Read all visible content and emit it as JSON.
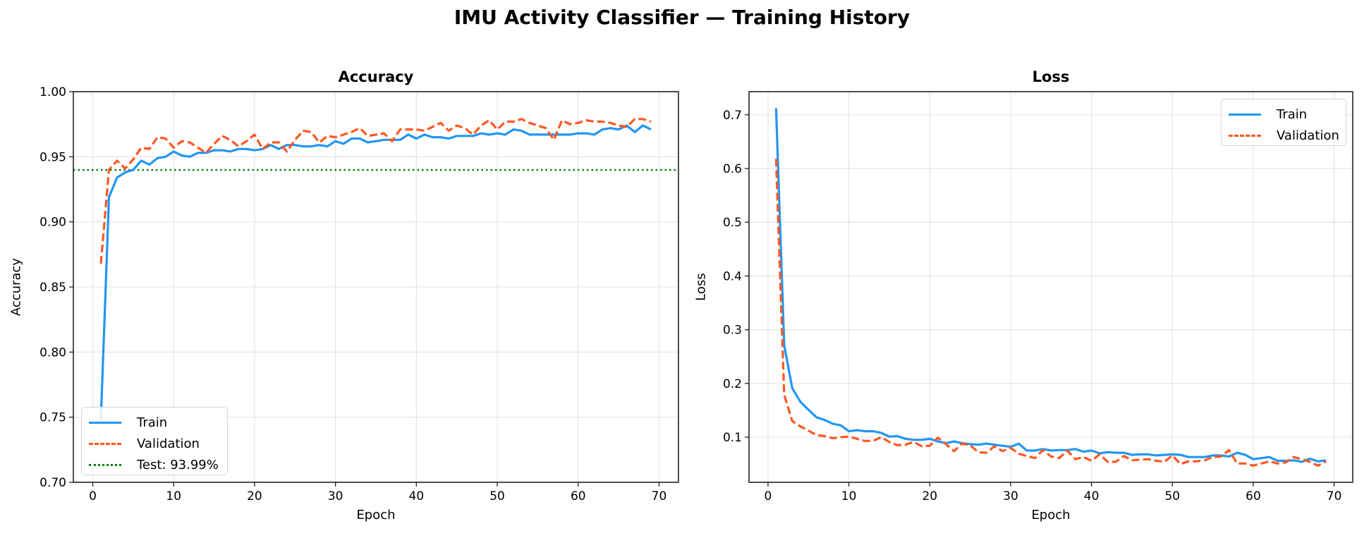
{
  "figure": {
    "suptitle": "IMU Activity Classifier — Training History"
  },
  "colors": {
    "train": "#2196F3",
    "validation": "#FF5722",
    "test": "#008000",
    "grid": "#e6e6e6",
    "spine": "#222222"
  },
  "chart_data": [
    {
      "type": "line",
      "title": "Accuracy",
      "xlabel": "Epoch",
      "ylabel": "Accuracy",
      "xlim": [
        -2.4,
        72.4
      ],
      "ylim": [
        0.7,
        1.0
      ],
      "xticks": [
        0,
        10,
        20,
        30,
        40,
        50,
        60,
        70
      ],
      "yticks": [
        0.7,
        0.75,
        0.8,
        0.85,
        0.9,
        0.95,
        1.0
      ],
      "ytick_labels": [
        "0.70",
        "0.75",
        "0.80",
        "0.85",
        "0.90",
        "0.95",
        "1.00"
      ],
      "grid": true,
      "legend_position": "lower left",
      "x": [
        1,
        2,
        3,
        4,
        5,
        6,
        7,
        8,
        9,
        10,
        11,
        12,
        13,
        14,
        15,
        16,
        17,
        18,
        19,
        20,
        21,
        22,
        23,
        24,
        25,
        26,
        27,
        28,
        29,
        30,
        31,
        32,
        33,
        34,
        35,
        36,
        37,
        38,
        39,
        40,
        41,
        42,
        43,
        44,
        45,
        46,
        47,
        48,
        49,
        50,
        51,
        52,
        53,
        54,
        55,
        56,
        57,
        58,
        59,
        60,
        61,
        62,
        63,
        64,
        65,
        66,
        67,
        68,
        69
      ],
      "series": [
        {
          "name": "Train",
          "style": "solid",
          "values": [
            0.748,
            0.919,
            0.934,
            0.938,
            0.94,
            0.947,
            0.944,
            0.949,
            0.95,
            0.954,
            0.951,
            0.95,
            0.953,
            0.953,
            0.955,
            0.955,
            0.954,
            0.956,
            0.956,
            0.955,
            0.956,
            0.959,
            0.956,
            0.959,
            0.959,
            0.958,
            0.958,
            0.959,
            0.958,
            0.962,
            0.96,
            0.964,
            0.964,
            0.961,
            0.962,
            0.963,
            0.963,
            0.963,
            0.967,
            0.964,
            0.967,
            0.965,
            0.965,
            0.964,
            0.966,
            0.966,
            0.966,
            0.968,
            0.967,
            0.968,
            0.967,
            0.971,
            0.97,
            0.967,
            0.967,
            0.967,
            0.967,
            0.967,
            0.967,
            0.968,
            0.968,
            0.967,
            0.971,
            0.972,
            0.971,
            0.974,
            0.969,
            0.974,
            0.971
          ]
        },
        {
          "name": "Validation",
          "style": "dashed",
          "values": [
            0.868,
            0.94,
            0.947,
            0.941,
            0.948,
            0.957,
            0.956,
            0.965,
            0.964,
            0.957,
            0.962,
            0.961,
            0.957,
            0.953,
            0.96,
            0.966,
            0.963,
            0.958,
            0.962,
            0.967,
            0.956,
            0.961,
            0.961,
            0.954,
            0.963,
            0.97,
            0.969,
            0.961,
            0.966,
            0.965,
            0.967,
            0.969,
            0.972,
            0.966,
            0.967,
            0.968,
            0.962,
            0.971,
            0.971,
            0.971,
            0.97,
            0.973,
            0.976,
            0.97,
            0.974,
            0.972,
            0.967,
            0.974,
            0.978,
            0.971,
            0.977,
            0.977,
            0.979,
            0.976,
            0.974,
            0.972,
            0.963,
            0.978,
            0.975,
            0.976,
            0.978,
            0.977,
            0.977,
            0.976,
            0.974,
            0.973,
            0.979,
            0.979,
            0.977
          ]
        }
      ],
      "hlines": [
        {
          "name": "Test: 93.99%",
          "value": 0.9399,
          "style": "dotted"
        }
      ],
      "legend": [
        "Train",
        "Validation",
        "Test: 93.99%"
      ]
    },
    {
      "type": "line",
      "title": "Loss",
      "xlabel": "Epoch",
      "ylabel": "Loss",
      "xlim": [
        -2.35,
        72.3
      ],
      "ylim": [
        0.016,
        0.743
      ],
      "xticks": [
        0,
        10,
        20,
        30,
        40,
        50,
        60,
        70
      ],
      "yticks": [
        0.1,
        0.2,
        0.3,
        0.4,
        0.5,
        0.6,
        0.7
      ],
      "ytick_labels": [
        "0.1",
        "0.2",
        "0.3",
        "0.4",
        "0.5",
        "0.6",
        "0.7"
      ],
      "grid": true,
      "legend_position": "upper right",
      "x": [
        1,
        2,
        3,
        4,
        5,
        6,
        7,
        8,
        9,
        10,
        11,
        12,
        13,
        14,
        15,
        16,
        17,
        18,
        19,
        20,
        21,
        22,
        23,
        24,
        25,
        26,
        27,
        28,
        29,
        30,
        31,
        32,
        33,
        34,
        35,
        36,
        37,
        38,
        39,
        40,
        41,
        42,
        43,
        44,
        45,
        46,
        47,
        48,
        49,
        50,
        51,
        52,
        53,
        54,
        55,
        56,
        57,
        58,
        59,
        60,
        61,
        62,
        63,
        64,
        65,
        66,
        67,
        68,
        69
      ],
      "series": [
        {
          "name": "Train",
          "style": "solid",
          "values": [
            0.712,
            0.271,
            0.191,
            0.166,
            0.151,
            0.137,
            0.132,
            0.125,
            0.122,
            0.111,
            0.113,
            0.111,
            0.111,
            0.108,
            0.101,
            0.102,
            0.097,
            0.095,
            0.095,
            0.097,
            0.092,
            0.089,
            0.092,
            0.089,
            0.087,
            0.086,
            0.088,
            0.086,
            0.084,
            0.082,
            0.088,
            0.075,
            0.075,
            0.078,
            0.075,
            0.076,
            0.076,
            0.078,
            0.073,
            0.075,
            0.07,
            0.072,
            0.071,
            0.071,
            0.067,
            0.068,
            0.068,
            0.066,
            0.067,
            0.068,
            0.067,
            0.063,
            0.063,
            0.063,
            0.066,
            0.066,
            0.064,
            0.071,
            0.067,
            0.059,
            0.061,
            0.063,
            0.056,
            0.056,
            0.057,
            0.054,
            0.06,
            0.055,
            0.057
          ]
        },
        {
          "name": "Validation",
          "style": "dashed",
          "values": [
            0.618,
            0.179,
            0.13,
            0.12,
            0.112,
            0.104,
            0.102,
            0.098,
            0.1,
            0.101,
            0.097,
            0.093,
            0.093,
            0.1,
            0.091,
            0.085,
            0.086,
            0.091,
            0.083,
            0.084,
            0.099,
            0.087,
            0.074,
            0.088,
            0.085,
            0.072,
            0.071,
            0.083,
            0.074,
            0.08,
            0.069,
            0.065,
            0.061,
            0.076,
            0.064,
            0.061,
            0.075,
            0.059,
            0.063,
            0.056,
            0.068,
            0.054,
            0.054,
            0.065,
            0.057,
            0.058,
            0.059,
            0.056,
            0.054,
            0.066,
            0.05,
            0.055,
            0.055,
            0.057,
            0.063,
            0.064,
            0.076,
            0.051,
            0.051,
            0.047,
            0.051,
            0.055,
            0.051,
            0.053,
            0.063,
            0.059,
            0.054,
            0.047,
            0.055
          ]
        }
      ],
      "legend": [
        "Train",
        "Validation"
      ]
    }
  ]
}
